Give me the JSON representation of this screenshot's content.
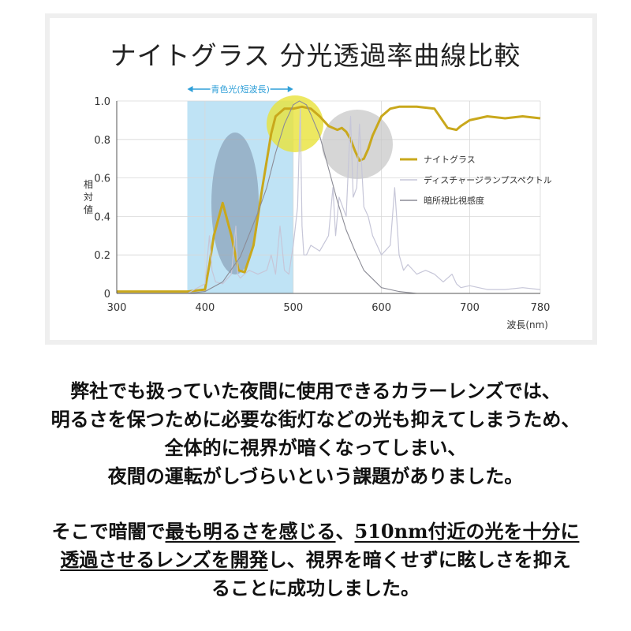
{
  "title": "ナイトグラス 分光透過率曲線比較",
  "chart_data": {
    "type": "line",
    "xlabel": "波長(nm)",
    "ylabel": "相対値",
    "xlim": [
      300,
      780
    ],
    "ylim": [
      0,
      1.0
    ],
    "xticks": [
      "300",
      "400",
      "500",
      "600",
      "700",
      "780"
    ],
    "yticks": [
      "0",
      "0.2",
      "0.4",
      "0.6",
      "0.8",
      "1.0"
    ],
    "band": {
      "label": "青色光(短波長)",
      "from": 380,
      "to": 500,
      "color": "#bfe3f5"
    },
    "legend_position": "right",
    "series": [
      {
        "name": "ナイトグラス",
        "color": "#c9a81c",
        "x": [
          300,
          380,
          400,
          405,
          410,
          420,
          430,
          438,
          445,
          455,
          465,
          475,
          480,
          490,
          500,
          510,
          520,
          530,
          540,
          550,
          555,
          560,
          565,
          570,
          575,
          580,
          585,
          590,
          600,
          610,
          620,
          640,
          660,
          675,
          685,
          690,
          700,
          720,
          740,
          760,
          780
        ],
        "y": [
          0.01,
          0.01,
          0.02,
          0.15,
          0.3,
          0.47,
          0.3,
          0.12,
          0.11,
          0.25,
          0.55,
          0.83,
          0.92,
          0.96,
          0.96,
          0.97,
          0.96,
          0.92,
          0.87,
          0.85,
          0.86,
          0.84,
          0.8,
          0.74,
          0.69,
          0.7,
          0.75,
          0.82,
          0.92,
          0.96,
          0.97,
          0.97,
          0.96,
          0.86,
          0.85,
          0.87,
          0.9,
          0.92,
          0.91,
          0.92,
          0.91
        ]
      },
      {
        "name": "ディスチャージランプスペクトル",
        "color": "#c6c6d8",
        "x": [
          300,
          380,
          400,
          405,
          408,
          412,
          420,
          430,
          435,
          437,
          440,
          450,
          460,
          470,
          475,
          480,
          485,
          490,
          495,
          500,
          505,
          508,
          510,
          512,
          515,
          520,
          530,
          540,
          545,
          548,
          552,
          560,
          565,
          568,
          572,
          575,
          580,
          585,
          590,
          600,
          610,
          615,
          620,
          625,
          630,
          640,
          650,
          660,
          670,
          680,
          685,
          690,
          700,
          720,
          740,
          760,
          780
        ],
        "y": [
          0.0,
          0.0,
          0.05,
          0.3,
          0.12,
          0.06,
          0.05,
          0.1,
          0.35,
          0.1,
          0.08,
          0.12,
          0.1,
          0.12,
          0.2,
          0.1,
          0.35,
          0.12,
          0.1,
          0.25,
          0.45,
          0.96,
          0.35,
          0.2,
          0.2,
          0.25,
          0.22,
          0.3,
          0.55,
          0.3,
          0.5,
          0.4,
          0.92,
          0.5,
          0.55,
          0.88,
          0.45,
          0.4,
          0.3,
          0.2,
          0.25,
          0.55,
          0.2,
          0.12,
          0.15,
          0.1,
          0.12,
          0.1,
          0.06,
          0.1,
          0.05,
          0.03,
          0.04,
          0.02,
          0.02,
          0.03,
          0.02
        ]
      },
      {
        "name": "暗所視比視感度",
        "color": "#8c8c96",
        "x": [
          300,
          380,
          400,
          420,
          440,
          460,
          470,
          480,
          490,
          500,
          507,
          515,
          520,
          530,
          540,
          550,
          560,
          570,
          580,
          600,
          620,
          640,
          660,
          680,
          700
        ],
        "y": [
          0.0,
          0.0,
          0.01,
          0.06,
          0.19,
          0.42,
          0.55,
          0.73,
          0.88,
          0.98,
          1.0,
          0.98,
          0.93,
          0.82,
          0.65,
          0.48,
          0.33,
          0.22,
          0.12,
          0.03,
          0.01,
          0.0,
          0.0,
          0.0,
          0.0
        ]
      }
    ]
  },
  "body": {
    "para1": [
      "弊社でも扱っていた夜間に使用できるカラーレンズでは、",
      "明るさを保つために必要な街灯などの光も抑えてしまうため、",
      "全体的に視界が暗くなってしまい、",
      "夜間の運転がしづらいという課題がありました。"
    ],
    "para2_line1": [
      "そこで暗闇で",
      "最も明るさを感じる",
      "、",
      "510nm付近の光を十分に"
    ],
    "para2_line2": [
      "透過させるレンズを開発",
      "し、視界を暗くせずに眩しさを抑え"
    ],
    "para2_line3": "ることに成功しました。"
  }
}
